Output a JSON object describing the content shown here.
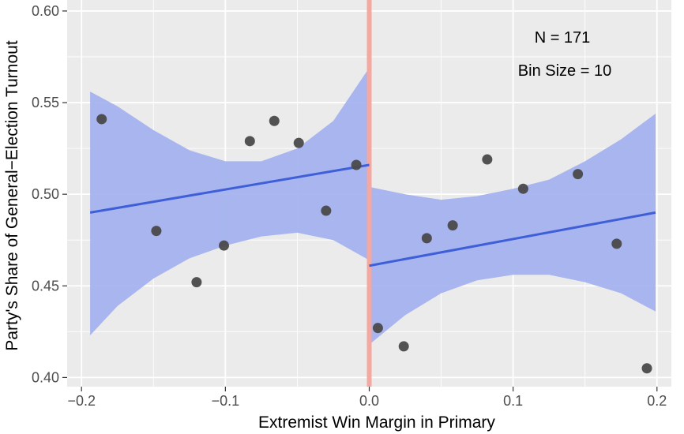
{
  "chart_data": {
    "type": "scatter",
    "title": "",
    "xlabel": "Extremist Win Margin in Primary",
    "ylabel": "Party's Share of General−Election Turnout",
    "xlim": [
      -0.21,
      0.21
    ],
    "ylim": [
      0.395,
      0.606
    ],
    "x_ticks": [
      -0.2,
      -0.1,
      0.0,
      0.1,
      0.2
    ],
    "x_tick_labels": [
      "−0.2",
      "−0.1",
      "0.0",
      "0.1",
      "0.2"
    ],
    "y_ticks": [
      0.4,
      0.45,
      0.5,
      0.55,
      0.6
    ],
    "y_tick_labels": [
      "0.40",
      "0.45",
      "0.50",
      "0.55",
      "0.60"
    ],
    "grid": true,
    "cutoff": 0.0,
    "annotations": [
      "N = 171",
      "Bin Size = 10"
    ],
    "points": [
      {
        "x": -0.186,
        "y": 0.541
      },
      {
        "x": -0.148,
        "y": 0.48
      },
      {
        "x": -0.12,
        "y": 0.452
      },
      {
        "x": -0.101,
        "y": 0.472
      },
      {
        "x": -0.083,
        "y": 0.529
      },
      {
        "x": -0.066,
        "y": 0.54
      },
      {
        "x": -0.049,
        "y": 0.528
      },
      {
        "x": -0.03,
        "y": 0.491
      },
      {
        "x": -0.009,
        "y": 0.516
      },
      {
        "x": 0.006,
        "y": 0.427
      },
      {
        "x": 0.024,
        "y": 0.417
      },
      {
        "x": 0.04,
        "y": 0.476
      },
      {
        "x": 0.058,
        "y": 0.483
      },
      {
        "x": 0.082,
        "y": 0.519
      },
      {
        "x": 0.107,
        "y": 0.503
      },
      {
        "x": 0.145,
        "y": 0.511
      },
      {
        "x": 0.172,
        "y": 0.473
      },
      {
        "x": 0.193,
        "y": 0.405
      }
    ],
    "fits": [
      {
        "x": [
          -0.194,
          0.0
        ],
        "y": [
          0.49,
          0.516
        ],
        "ci_x": [
          -0.194,
          -0.175,
          -0.15,
          -0.125,
          -0.1,
          -0.075,
          -0.05,
          -0.025,
          0.0
        ],
        "ci_lower": [
          0.423,
          0.439,
          0.454,
          0.465,
          0.472,
          0.477,
          0.479,
          0.475,
          0.464
        ],
        "ci_upper": [
          0.556,
          0.548,
          0.535,
          0.524,
          0.518,
          0.518,
          0.525,
          0.54,
          0.569
        ]
      },
      {
        "x": [
          0.0,
          0.199
        ],
        "y": [
          0.461,
          0.49
        ],
        "ci_x": [
          0.0,
          0.025,
          0.05,
          0.075,
          0.1,
          0.125,
          0.15,
          0.175,
          0.199
        ],
        "ci_lower": [
          0.418,
          0.434,
          0.446,
          0.453,
          0.456,
          0.456,
          0.452,
          0.446,
          0.436
        ],
        "ci_upper": [
          0.504,
          0.5,
          0.497,
          0.499,
          0.503,
          0.508,
          0.518,
          0.53,
          0.544
        ]
      }
    ],
    "colors": {
      "panel": "#ebebeb",
      "grid": "#ffffff",
      "point": "#4a4a4a",
      "fit_line": "#3f5fd8",
      "ci_band": "#a4b2ee",
      "cutoff_line": "#f4a8a0"
    }
  }
}
